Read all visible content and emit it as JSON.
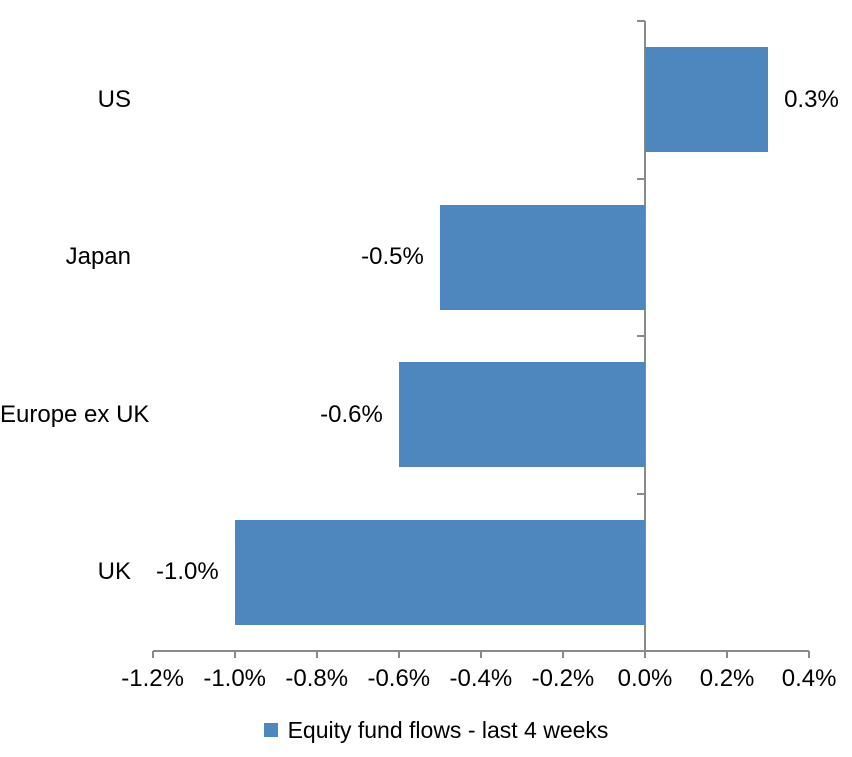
{
  "chart_data": {
    "type": "bar",
    "orientation": "horizontal",
    "title": "",
    "categories": [
      "US",
      "Japan",
      "Europe ex UK",
      "UK"
    ],
    "values": [
      0.3,
      -0.5,
      -0.6,
      -1.0
    ],
    "data_labels": [
      "0.3%",
      "-0.5%",
      "-0.6%",
      "-1.0%"
    ],
    "series_name": "Equity fund flows - last 4 weeks",
    "x_tick_labels": [
      "-1.2%",
      "-1.0%",
      "-0.8%",
      "-0.6%",
      "-0.4%",
      "-0.2%",
      "0.0%",
      "0.2%",
      "0.4%"
    ],
    "x_tick_values": [
      -1.2,
      -1.0,
      -0.8,
      -0.6,
      -0.4,
      -0.2,
      0.0,
      0.2,
      0.4
    ],
    "xlim": [
      -1.2,
      0.4
    ],
    "grid": false,
    "legend_position": "bottom",
    "bar_color": "#4E87BE",
    "axis_color": "#8a8a8a",
    "text_color": "#000000"
  },
  "legend": {
    "label": "Equity fund flows - last 4 weeks",
    "swatch_color": "#4E87BE"
  }
}
